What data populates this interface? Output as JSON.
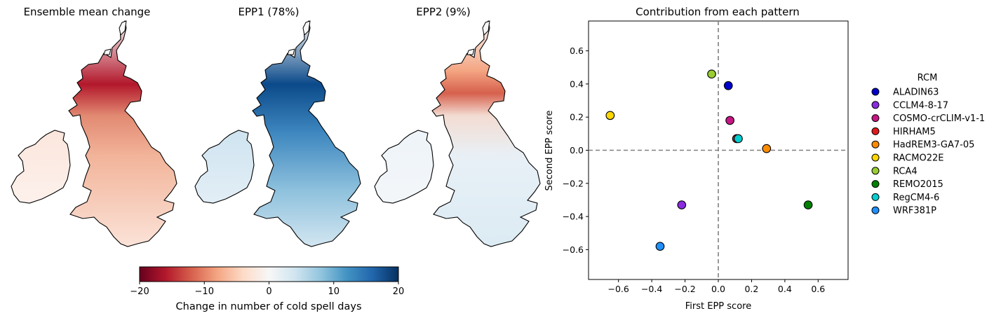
{
  "maps": {
    "panels": [
      {
        "title": "Ensemble mean change"
      },
      {
        "title": "EPP1 (78%)"
      },
      {
        "title": "EPP2 (9%)"
      }
    ],
    "colorbar": {
      "label": "Change in number of cold spell days",
      "ticks": [
        -20,
        -10,
        0,
        10,
        20
      ],
      "tick_labels": [
        "−20",
        "−10",
        "0",
        "10",
        "20"
      ],
      "range": [
        -20,
        20
      ],
      "colormap": "RdBu",
      "colors": [
        "#67001f",
        "#b2182b",
        "#d6604d",
        "#f4a582",
        "#fddbc7",
        "#f7f7f7",
        "#d1e5f0",
        "#92c5de",
        "#4393c3",
        "#2166ac",
        "#053061"
      ]
    }
  },
  "chart_data": {
    "type": "scatter",
    "title": "Contribution from each pattern",
    "xlabel": "First EPP score",
    "ylabel": "Second EPP score",
    "xlim": [
      -0.78,
      0.78
    ],
    "ylim": [
      -0.78,
      0.78
    ],
    "xticks": [
      -0.6,
      -0.4,
      -0.2,
      0.0,
      0.2,
      0.4,
      0.6
    ],
    "xtick_labels": [
      "−0.6",
      "−0.4",
      "−0.2",
      "0.0",
      "0.2",
      "0.4",
      "0.6"
    ],
    "yticks": [
      -0.6,
      -0.4,
      -0.2,
      0.0,
      0.2,
      0.4,
      0.6
    ],
    "ytick_labels": [
      "−0.6",
      "−0.4",
      "−0.2",
      "0.0",
      "0.2",
      "0.4",
      "0.6"
    ],
    "reference_lines": {
      "x": 0.0,
      "y": 0.0,
      "style": "dashed",
      "color": "#808080"
    },
    "grid": false,
    "legend_title": "RCM",
    "legend_placement": "right, outside",
    "series": [
      {
        "name": "ALADIN63",
        "color": "#0000cd",
        "x": 0.06,
        "y": 0.39
      },
      {
        "name": "CCLM4-8-17",
        "color": "#8a2be2",
        "x": -0.22,
        "y": -0.33
      },
      {
        "name": "COSMO-crCLIM-v1-1",
        "color": "#c71585",
        "x": 0.07,
        "y": 0.18
      },
      {
        "name": "HIRHAM5",
        "color": "#e31a1c",
        "x": 0.11,
        "y": 0.07
      },
      {
        "name": "HadREM3-GA7-05",
        "color": "#ff8c00",
        "x": 0.29,
        "y": 0.01
      },
      {
        "name": "RACMO22E",
        "color": "#ffd700",
        "x": -0.65,
        "y": 0.21
      },
      {
        "name": "RCA4",
        "color": "#9acd32",
        "x": -0.04,
        "y": 0.46
      },
      {
        "name": "REMO2015",
        "color": "#008000",
        "x": 0.54,
        "y": -0.33
      },
      {
        "name": "RegCM4-6",
        "color": "#00ced1",
        "x": 0.12,
        "y": 0.07
      },
      {
        "name": "WRF381P",
        "color": "#1e90ff",
        "x": -0.35,
        "y": -0.58
      }
    ]
  }
}
